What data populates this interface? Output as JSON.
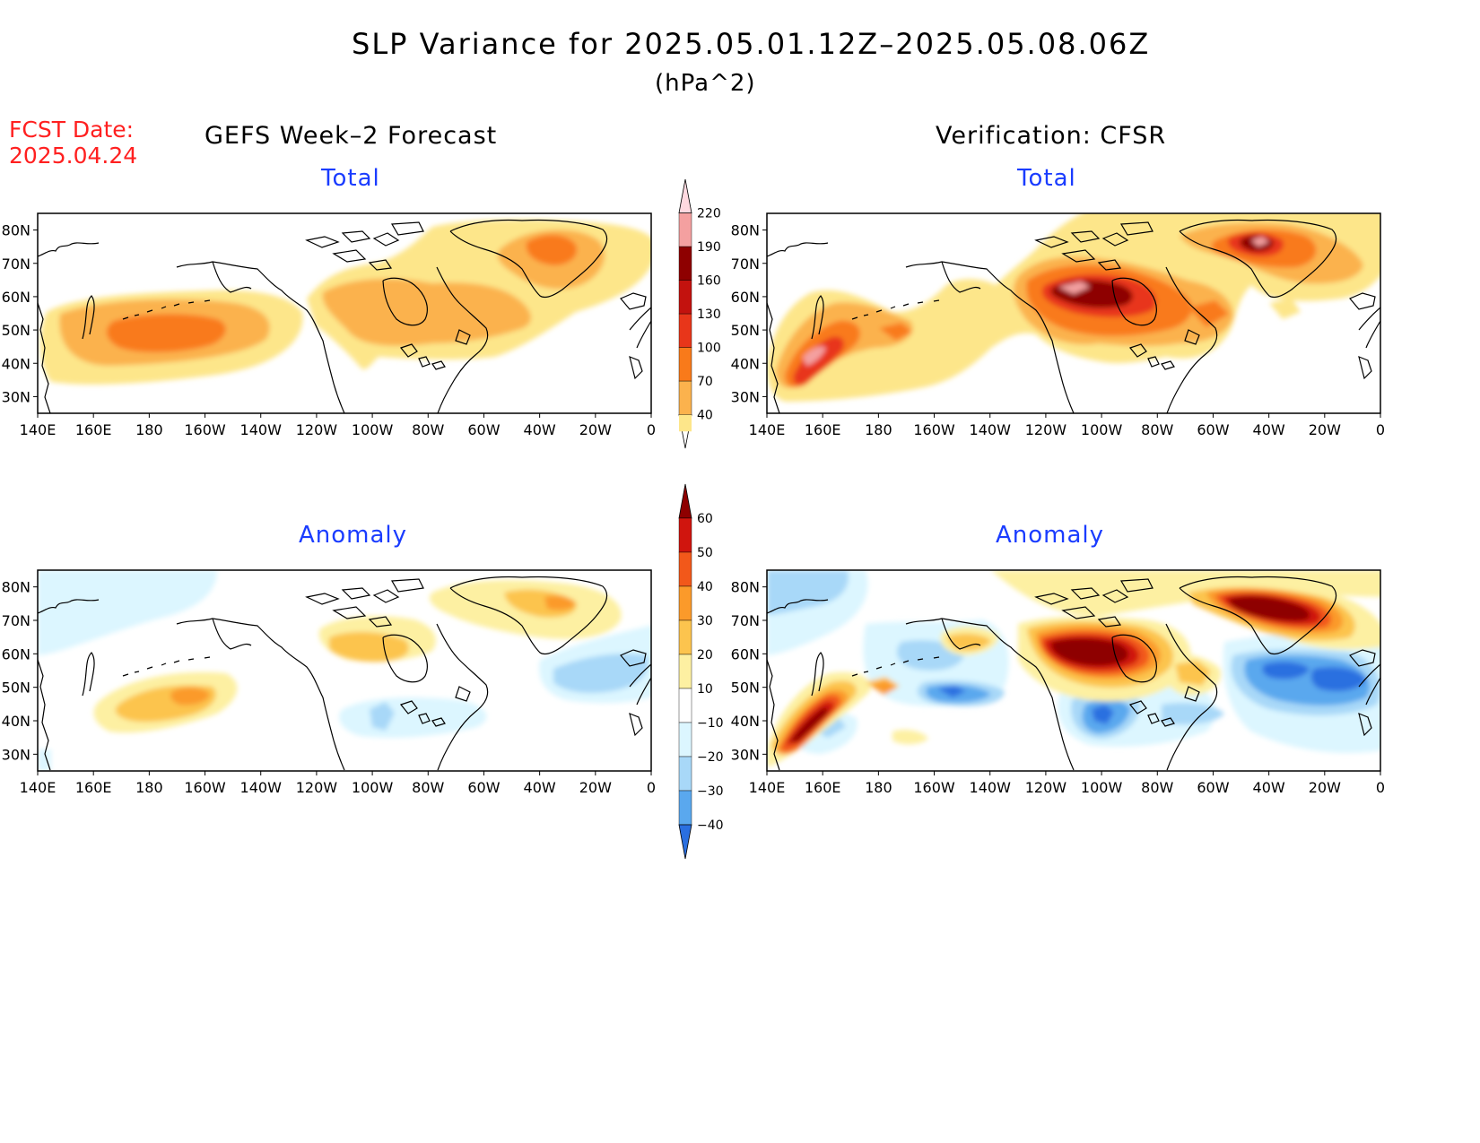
{
  "header": {
    "title": "SLP Variance for 2025.05.01.12Z–2025.05.08.06Z",
    "units": "(hPa^2)",
    "fcst_label": "FCST Date:",
    "fcst_date": "2025.04.24"
  },
  "columns": {
    "left_title": "GEFS Week–2 Forecast",
    "right_title": "Verification: CFSR"
  },
  "panels": [
    {
      "id": "fcst-total",
      "subtitle": "Total"
    },
    {
      "id": "verif-total",
      "subtitle": "Total"
    },
    {
      "id": "fcst-anomaly",
      "subtitle": "Anomaly"
    },
    {
      "id": "verif-anomaly",
      "subtitle": "Anomaly"
    }
  ],
  "axes": {
    "lon_labels": [
      "140E",
      "160E",
      "180",
      "160W",
      "140W",
      "120W",
      "100W",
      "80W",
      "60W",
      "40W",
      "20W",
      "0"
    ],
    "lat_labels": [
      "80N",
      "70N",
      "60N",
      "50N",
      "40N",
      "30N"
    ]
  },
  "colorbars": {
    "total": {
      "levels": [
        "40",
        "70",
        "100",
        "130",
        "160",
        "190",
        "220"
      ],
      "colors": [
        "#fde68a",
        "#fbb24d",
        "#f97a1a",
        "#e8361a",
        "#c3120e",
        "#8e0000",
        "#f4a0a0",
        "#ffd9e0"
      ]
    },
    "anomaly": {
      "levels": [
        "60",
        "50",
        "40",
        "30",
        "20",
        "10",
        "−10",
        "−20",
        "−30",
        "−40"
      ],
      "colors": [
        "#8e0000",
        "#d0150e",
        "#f2581a",
        "#fb9a2a",
        "#fcc44e",
        "#fdf0a2",
        "#ffffff",
        "#dcf6ff",
        "#a8d8f8",
        "#5aa8ee",
        "#2a6fe0"
      ]
    }
  }
}
